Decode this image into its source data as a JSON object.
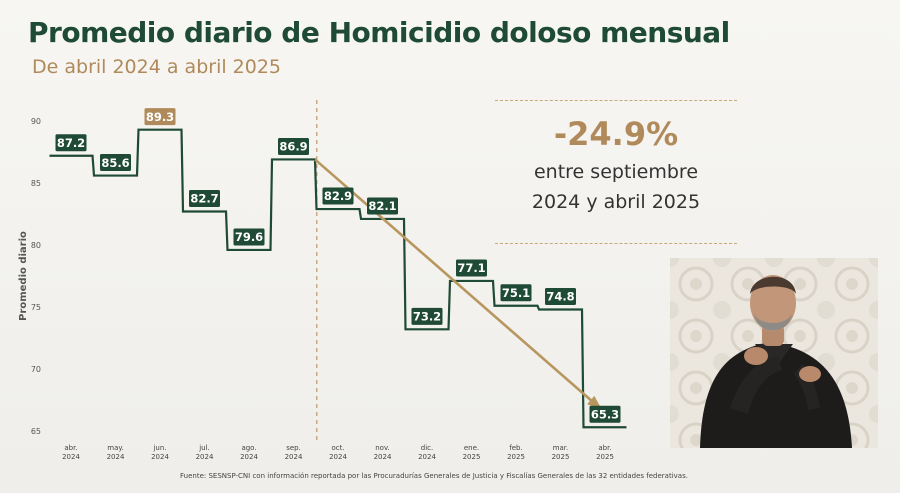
{
  "title": "Promedio diario de Homicidio doloso mensual",
  "subtitle": "De abril 2024 a abril 2025",
  "callout": {
    "change": "-24.9%",
    "line1": "entre septiembre",
    "line2": "2024 y abril 2025"
  },
  "source": "Fuente: SESNSP-CNI con información reportada por las Procuradurías Generales de Justicia y Fiscalías Generales de las 32 entidades federativas.",
  "colors": {
    "primary": "#1f4a35",
    "accent": "#b08a5a",
    "trend": "#b8975f"
  },
  "chart_data": {
    "type": "line",
    "style": "step",
    "title": "Promedio diario de Homicidio doloso mensual",
    "ylabel": "Promedio diario",
    "xlabel": "",
    "ylim": [
      65,
      90
    ],
    "yticks": [
      65,
      70,
      75,
      80,
      85,
      90
    ],
    "categories": [
      [
        "abr.",
        "2024"
      ],
      [
        "may.",
        "2024"
      ],
      [
        "jun.",
        "2024"
      ],
      [
        "jul.",
        "2024"
      ],
      [
        "ago.",
        "2024"
      ],
      [
        "sep.",
        "2024"
      ],
      [
        "oct.",
        "2024"
      ],
      [
        "nov.",
        "2024"
      ],
      [
        "dic.",
        "2024"
      ],
      [
        "ene.",
        "2025"
      ],
      [
        "feb.",
        "2025"
      ],
      [
        "mar.",
        "2025"
      ],
      [
        "abr.",
        "2025"
      ]
    ],
    "values": [
      87.2,
      85.6,
      89.3,
      82.7,
      79.6,
      86.9,
      82.9,
      82.1,
      73.2,
      77.1,
      75.1,
      74.8,
      65.3
    ],
    "value_labels": [
      "87.2",
      "85.6",
      "89.3",
      "82.7",
      "79.6",
      "86.9",
      "82.9",
      "82.1",
      "73.2",
      "77.1",
      "75.1",
      "74.8",
      "65.3"
    ],
    "highlight_index": 2,
    "divider_after": "sep. 2024",
    "trend": {
      "from": "sep. 2024",
      "to": "abr. 2025",
      "from_value": 86.9,
      "to_value": 65.3
    },
    "grid": false
  }
}
